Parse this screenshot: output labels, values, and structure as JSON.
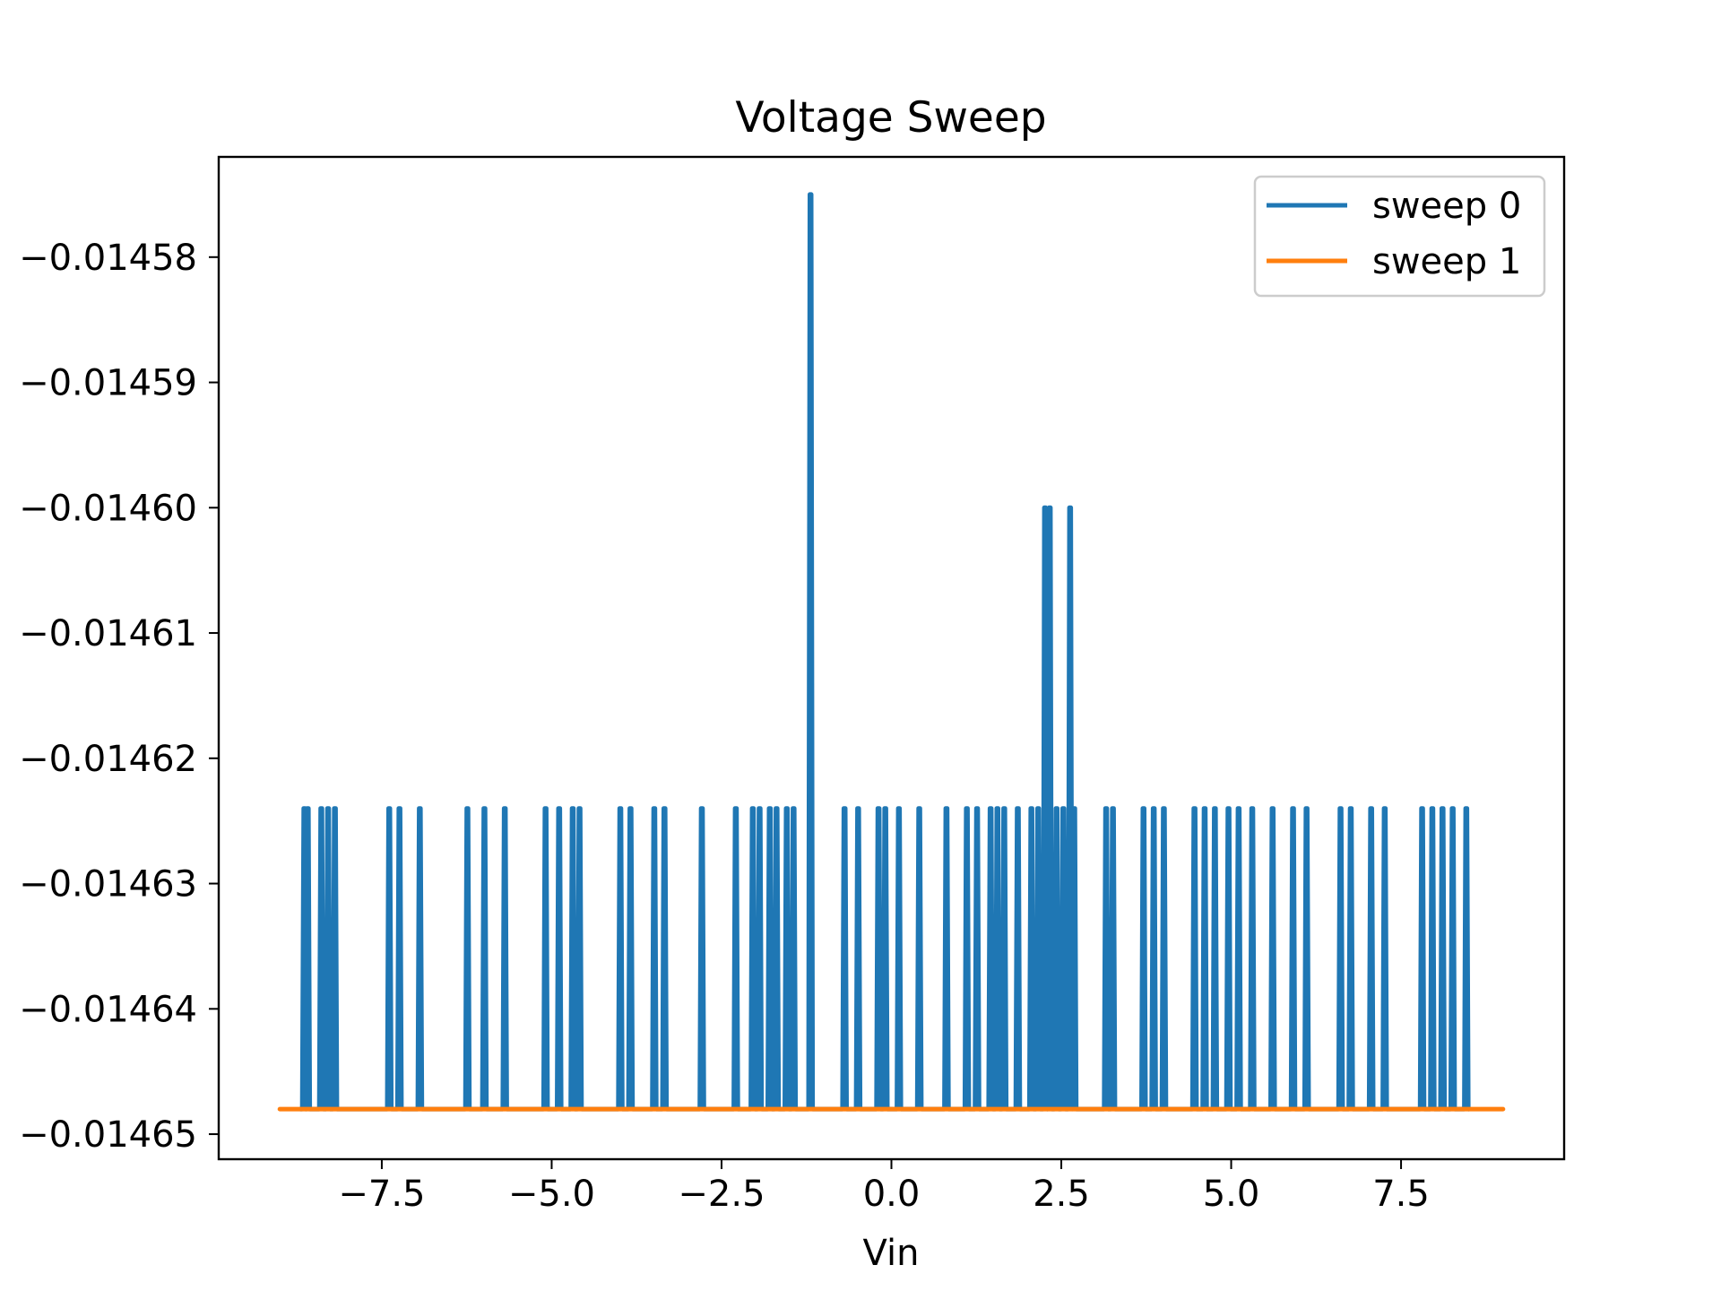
{
  "colors": {
    "sweep_0": "#1f77b4",
    "sweep_1": "#ff7f0e",
    "axes": "#000000",
    "background": "#ffffff",
    "legend_border": "#cccccc"
  },
  "chart_data": {
    "type": "line",
    "title": "Voltage Sweep",
    "xlabel": "Vin",
    "ylabel": "",
    "xlim": [
      -9.9,
      9.9
    ],
    "ylim": [
      -0.014652,
      -0.014572
    ],
    "grid": false,
    "legend_position": "top-right",
    "x_ticks": [
      -7.5,
      -5.0,
      -2.5,
      0.0,
      2.5,
      5.0,
      7.5
    ],
    "x_tick_labels": [
      "−7.5",
      "−5.0",
      "−2.5",
      "0.0",
      "2.5",
      "5.0",
      "7.5"
    ],
    "y_ticks": [
      -0.01458,
      -0.01459,
      -0.0146,
      -0.01461,
      -0.01462,
      -0.01463,
      -0.01464,
      -0.01465
    ],
    "y_tick_labels": [
      "−0.01458",
      "−0.01459",
      "−0.01460",
      "−0.01461",
      "−0.01462",
      "−0.01463",
      "−0.01464",
      "−0.01465"
    ],
    "series": [
      {
        "name": "sweep 0",
        "x_range": [
          -8.7,
          8.5
        ],
        "baseline": -0.014648,
        "spikes": [
          {
            "x": -8.65,
            "y": -0.014624
          },
          {
            "x": -8.6,
            "y": -0.014624
          },
          {
            "x": -8.4,
            "y": -0.014624
          },
          {
            "x": -8.3,
            "y": -0.014624
          },
          {
            "x": -8.2,
            "y": -0.014624
          },
          {
            "x": -7.4,
            "y": -0.014624
          },
          {
            "x": -7.25,
            "y": -0.014624
          },
          {
            "x": -6.95,
            "y": -0.014624
          },
          {
            "x": -6.25,
            "y": -0.014624
          },
          {
            "x": -6.0,
            "y": -0.014624
          },
          {
            "x": -5.7,
            "y": -0.014624
          },
          {
            "x": -5.1,
            "y": -0.014624
          },
          {
            "x": -4.9,
            "y": -0.014624
          },
          {
            "x": -4.7,
            "y": -0.014624
          },
          {
            "x": -4.6,
            "y": -0.014624
          },
          {
            "x": -4.0,
            "y": -0.014624
          },
          {
            "x": -3.85,
            "y": -0.014624
          },
          {
            "x": -3.5,
            "y": -0.014624
          },
          {
            "x": -3.35,
            "y": -0.014624
          },
          {
            "x": -2.8,
            "y": -0.014624
          },
          {
            "x": -2.3,
            "y": -0.014624
          },
          {
            "x": -2.05,
            "y": -0.014624
          },
          {
            "x": -1.95,
            "y": -0.014624
          },
          {
            "x": -1.8,
            "y": -0.014624
          },
          {
            "x": -1.7,
            "y": -0.014624
          },
          {
            "x": -1.55,
            "y": -0.014624
          },
          {
            "x": -1.45,
            "y": -0.014624
          },
          {
            "x": -1.2,
            "y": -0.014575
          },
          {
            "x": -0.7,
            "y": -0.014624
          },
          {
            "x": -0.5,
            "y": -0.014624
          },
          {
            "x": -0.2,
            "y": -0.014624
          },
          {
            "x": -0.1,
            "y": -0.014624
          },
          {
            "x": 0.1,
            "y": -0.014624
          },
          {
            "x": 0.4,
            "y": -0.014624
          },
          {
            "x": 0.8,
            "y": -0.014624
          },
          {
            "x": 1.1,
            "y": -0.014624
          },
          {
            "x": 1.25,
            "y": -0.014624
          },
          {
            "x": 1.45,
            "y": -0.014624
          },
          {
            "x": 1.55,
            "y": -0.014624
          },
          {
            "x": 1.65,
            "y": -0.014624
          },
          {
            "x": 1.85,
            "y": -0.014624
          },
          {
            "x": 2.05,
            "y": -0.014624
          },
          {
            "x": 2.15,
            "y": -0.014624
          },
          {
            "x": 2.25,
            "y": -0.0146
          },
          {
            "x": 2.32,
            "y": -0.0146
          },
          {
            "x": 2.42,
            "y": -0.014624
          },
          {
            "x": 2.52,
            "y": -0.014624
          },
          {
            "x": 2.62,
            "y": -0.0146
          },
          {
            "x": 2.68,
            "y": -0.014624
          },
          {
            "x": 3.15,
            "y": -0.014624
          },
          {
            "x": 3.25,
            "y": -0.014624
          },
          {
            "x": 3.7,
            "y": -0.014624
          },
          {
            "x": 3.85,
            "y": -0.014624
          },
          {
            "x": 4.0,
            "y": -0.014624
          },
          {
            "x": 4.45,
            "y": -0.014624
          },
          {
            "x": 4.6,
            "y": -0.014624
          },
          {
            "x": 4.75,
            "y": -0.014624
          },
          {
            "x": 4.95,
            "y": -0.014624
          },
          {
            "x": 5.1,
            "y": -0.014624
          },
          {
            "x": 5.3,
            "y": -0.014624
          },
          {
            "x": 5.6,
            "y": -0.014624
          },
          {
            "x": 5.9,
            "y": -0.014624
          },
          {
            "x": 6.1,
            "y": -0.014624
          },
          {
            "x": 6.6,
            "y": -0.014624
          },
          {
            "x": 6.75,
            "y": -0.014624
          },
          {
            "x": 7.05,
            "y": -0.014624
          },
          {
            "x": 7.25,
            "y": -0.014624
          },
          {
            "x": 7.8,
            "y": -0.014624
          },
          {
            "x": 7.95,
            "y": -0.014624
          },
          {
            "x": 8.1,
            "y": -0.014624
          },
          {
            "x": 8.25,
            "y": -0.014624
          },
          {
            "x": 8.45,
            "y": -0.014624
          }
        ]
      },
      {
        "name": "sweep 1",
        "x": [
          -9.0,
          9.0
        ],
        "y": [
          -0.014648,
          -0.014648
        ]
      }
    ]
  }
}
